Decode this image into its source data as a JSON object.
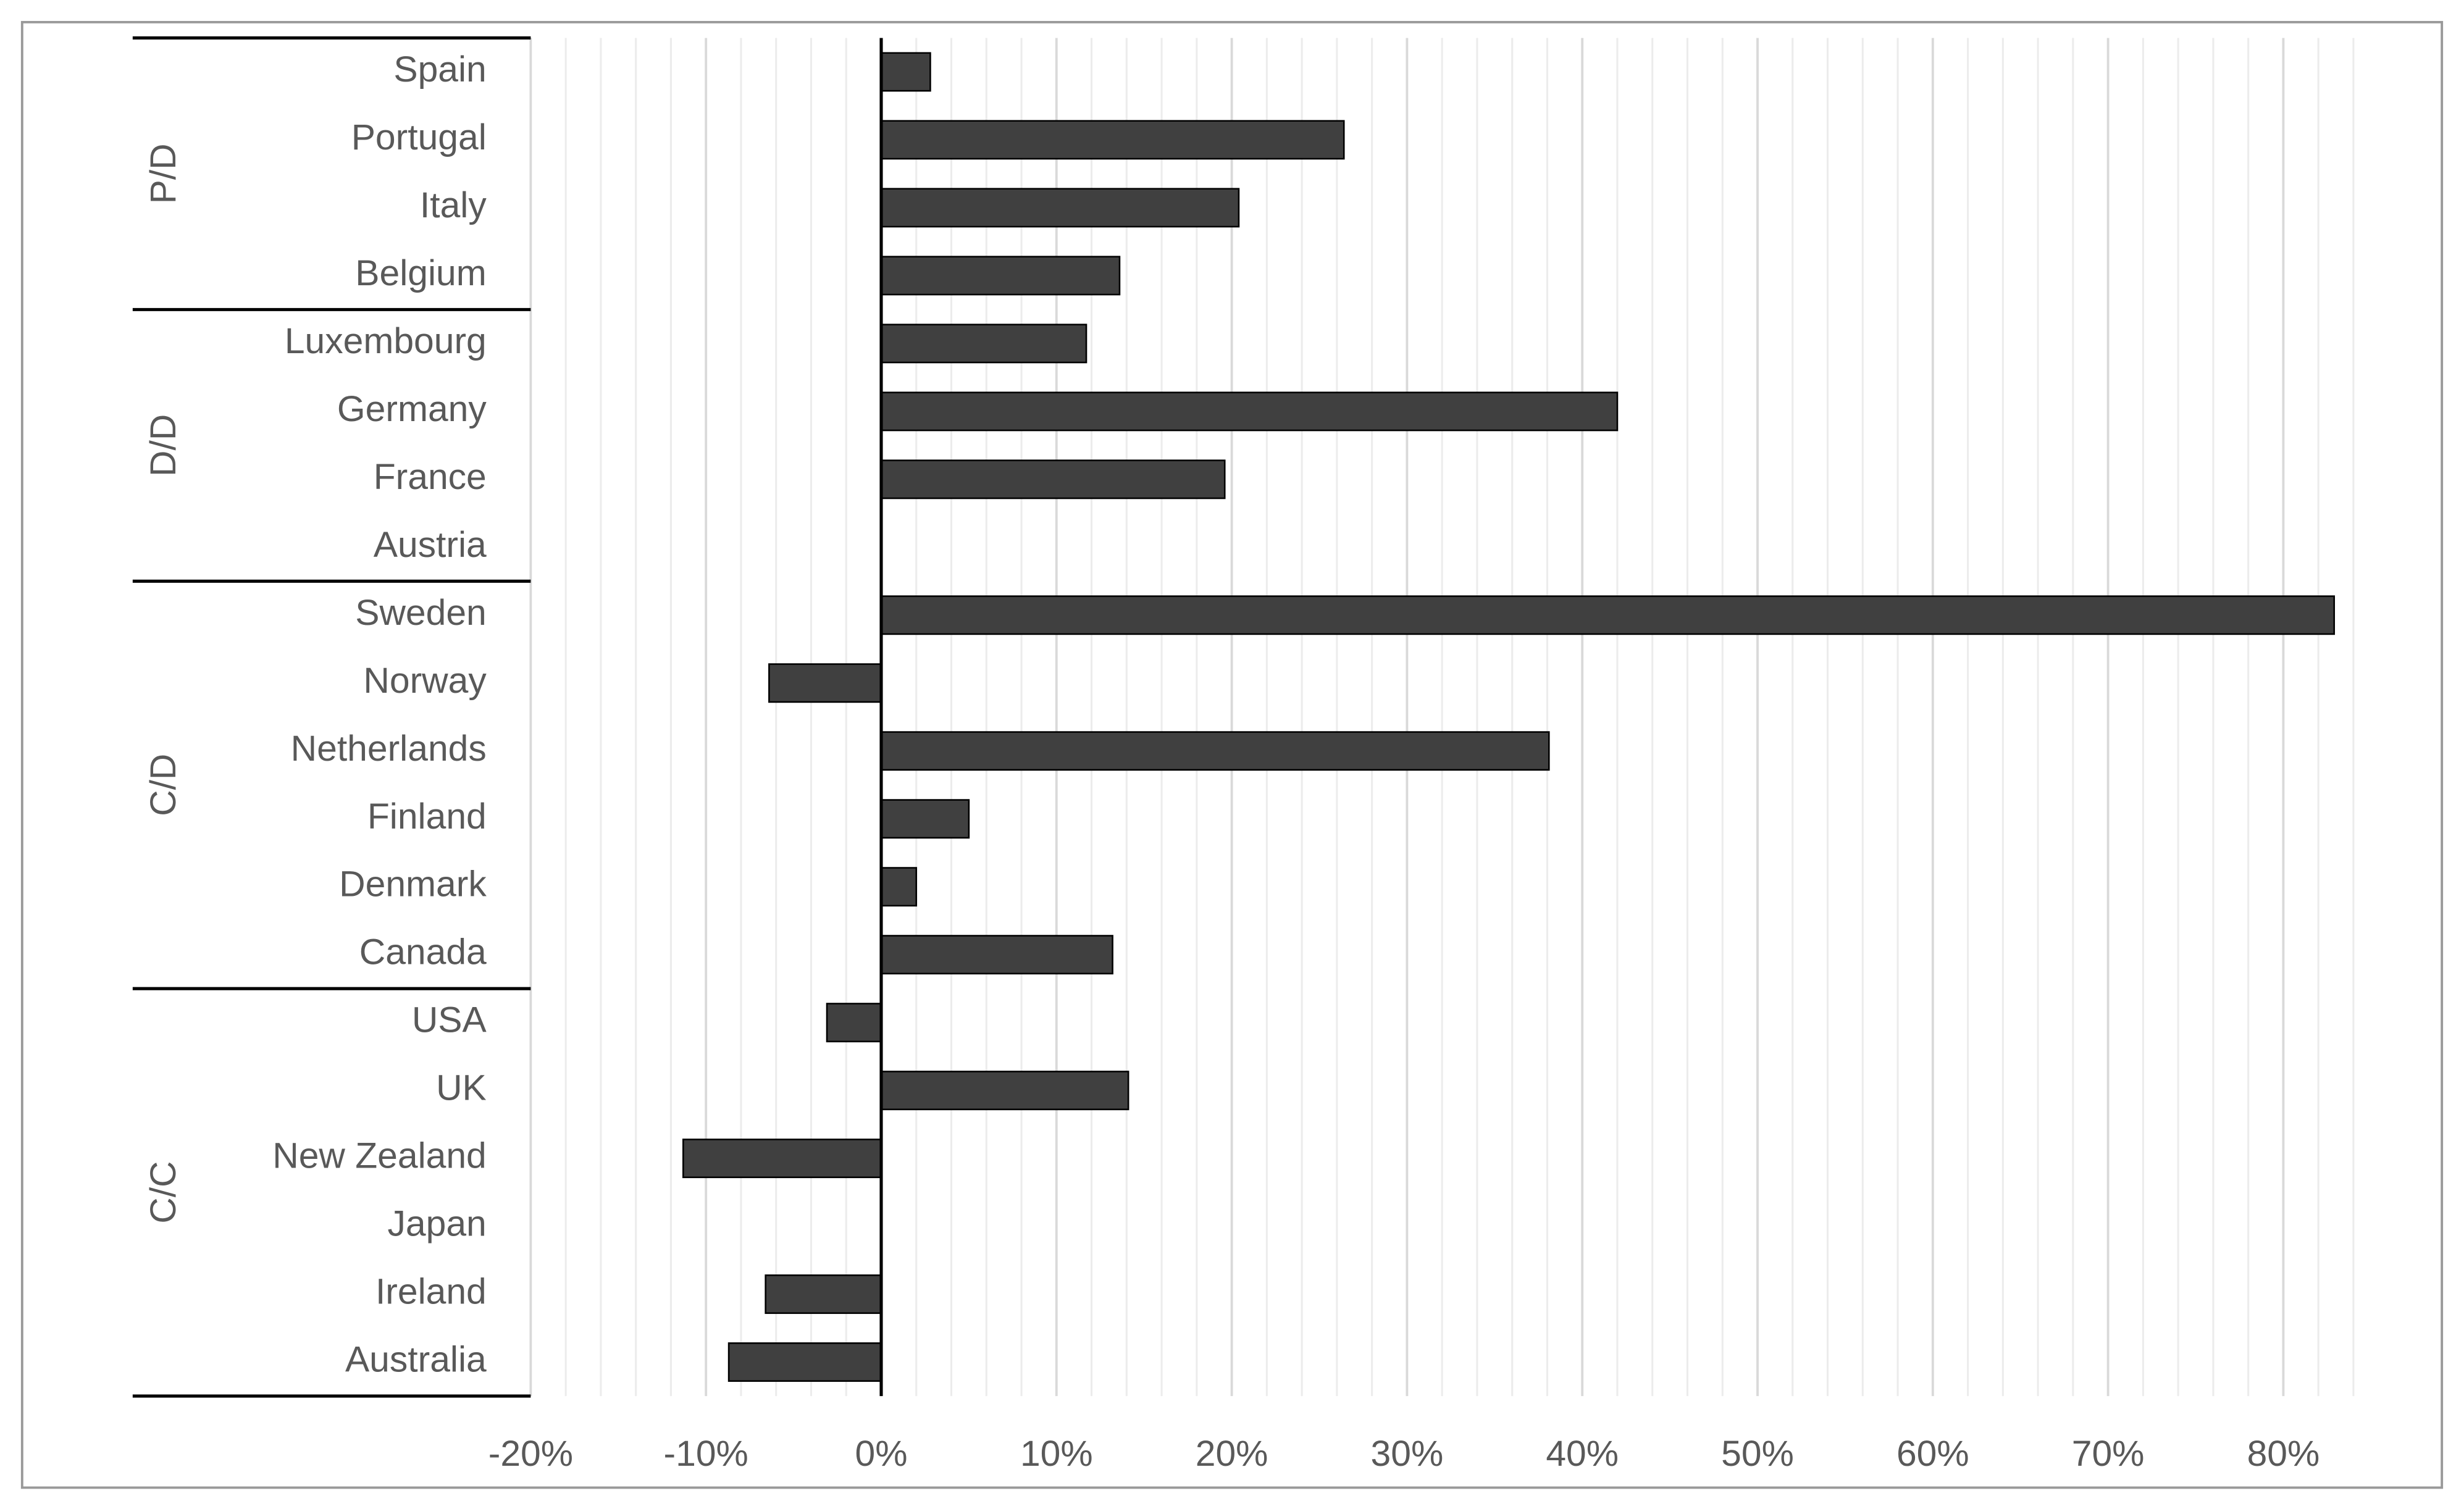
{
  "chart_data": {
    "type": "bar",
    "orientation": "horizontal",
    "color": "#404040",
    "groups": [
      {
        "name": "P/D",
        "categories": [
          "Spain",
          "Portugal",
          "Italy",
          "Belgium"
        ],
        "values": [
          2.8,
          26.4,
          20.4,
          13.6
        ]
      },
      {
        "name": "D/D",
        "categories": [
          "Luxembourg",
          "Germany",
          "France",
          "Austria"
        ],
        "values": [
          11.7,
          42.0,
          19.6,
          0
        ]
      },
      {
        "name": "C/D",
        "categories": [
          "Sweden",
          "Norway",
          "Netherlands",
          "Finland",
          "Denmark",
          "Canada"
        ],
        "values": [
          82.9,
          -6.4,
          38.1,
          5.0,
          2.0,
          13.2
        ]
      },
      {
        "name": "C/C",
        "categories": [
          "USA",
          "UK",
          "New Zealand",
          "Japan",
          "Ireland",
          "Australia"
        ],
        "values": [
          -3.1,
          14.1,
          -11.3,
          0,
          -6.6,
          -8.7
        ]
      }
    ],
    "xlim": [
      -20,
      84
    ],
    "xticks": [
      {
        "value": -20,
        "label": "-20%"
      },
      {
        "value": -10,
        "label": "-10%"
      },
      {
        "value": 0,
        "label": "0%"
      },
      {
        "value": 10,
        "label": "10%"
      },
      {
        "value": 20,
        "label": "20%"
      },
      {
        "value": 30,
        "label": "30%"
      },
      {
        "value": 40,
        "label": "40%"
      },
      {
        "value": 50,
        "label": "50%"
      },
      {
        "value": 60,
        "label": "60%"
      },
      {
        "value": 70,
        "label": "70%"
      },
      {
        "value": 80,
        "label": "80%"
      }
    ],
    "xminorticks": [
      -18,
      -16,
      -14,
      -12,
      -8,
      -6,
      -4,
      -2,
      2,
      4,
      6,
      8,
      12,
      14,
      16,
      18,
      22,
      24,
      26,
      28,
      32,
      34,
      36,
      38,
      42,
      44,
      46,
      48,
      52,
      54,
      56,
      58,
      62,
      64,
      66,
      68,
      72,
      74,
      76,
      78,
      82,
      84
    ],
    "grid": true
  }
}
